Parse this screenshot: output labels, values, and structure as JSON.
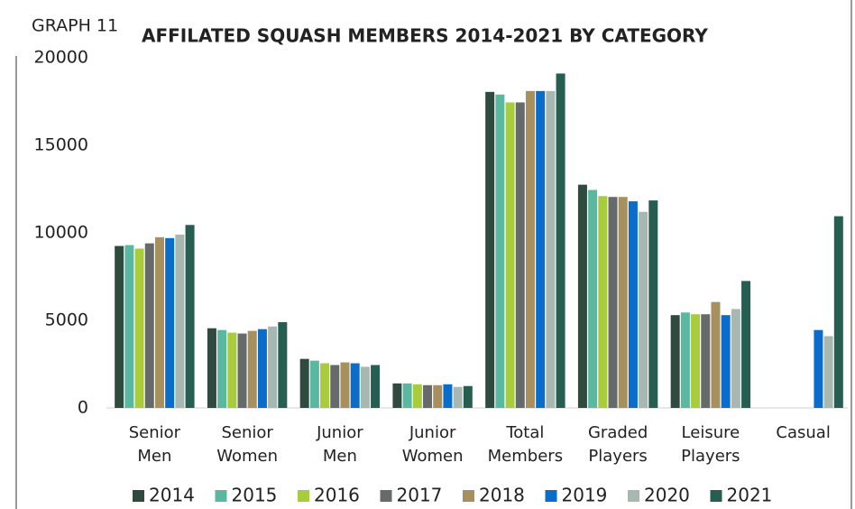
{
  "chart_data": {
    "type": "bar",
    "label": "GRAPH 11",
    "title": "AFFILATED SQUASH MEMBERS 2014-2021 BY CATEGORY",
    "categories": [
      [
        "Senior",
        "Men"
      ],
      [
        "Senior",
        "Women"
      ],
      [
        "Junior",
        "Men"
      ],
      [
        "Junior",
        "Women"
      ],
      [
        "Total",
        "Members"
      ],
      [
        "Graded",
        "Players"
      ],
      [
        "Leisure",
        "Players"
      ],
      [
        "Casual"
      ]
    ],
    "ylim": [
      0,
      20000
    ],
    "yticks": [
      0,
      5000,
      10000,
      15000,
      20000
    ],
    "grid": false,
    "legend": "bottom",
    "series": [
      {
        "name": "2014",
        "color": "#2f4a3f",
        "values": [
          9250,
          4550,
          2800,
          1400,
          18050,
          12750,
          5300,
          null
        ]
      },
      {
        "name": "2015",
        "color": "#5bb8a0",
        "values": [
          9300,
          4450,
          2700,
          1400,
          17900,
          12450,
          5450,
          null
        ]
      },
      {
        "name": "2016",
        "color": "#a8cc3c",
        "values": [
          9100,
          4300,
          2550,
          1350,
          17450,
          12100,
          5350,
          null
        ]
      },
      {
        "name": "2017",
        "color": "#666a6a",
        "values": [
          9400,
          4250,
          2450,
          1300,
          17450,
          12050,
          5350,
          null
        ]
      },
      {
        "name": "2018",
        "color": "#a8905e",
        "values": [
          9750,
          4400,
          2600,
          1300,
          18100,
          12050,
          6050,
          null
        ]
      },
      {
        "name": "2019",
        "color": "#0a6ccb",
        "values": [
          9700,
          4500,
          2550,
          1350,
          18100,
          11800,
          5300,
          4450
        ]
      },
      {
        "name": "2020",
        "color": "#a6b8b0",
        "values": [
          9900,
          4650,
          2350,
          1200,
          18100,
          11200,
          5650,
          4100
        ]
      },
      {
        "name": "2021",
        "color": "#275e52",
        "values": [
          10450,
          4900,
          2450,
          1250,
          19100,
          11850,
          7250,
          10950
        ]
      }
    ]
  }
}
